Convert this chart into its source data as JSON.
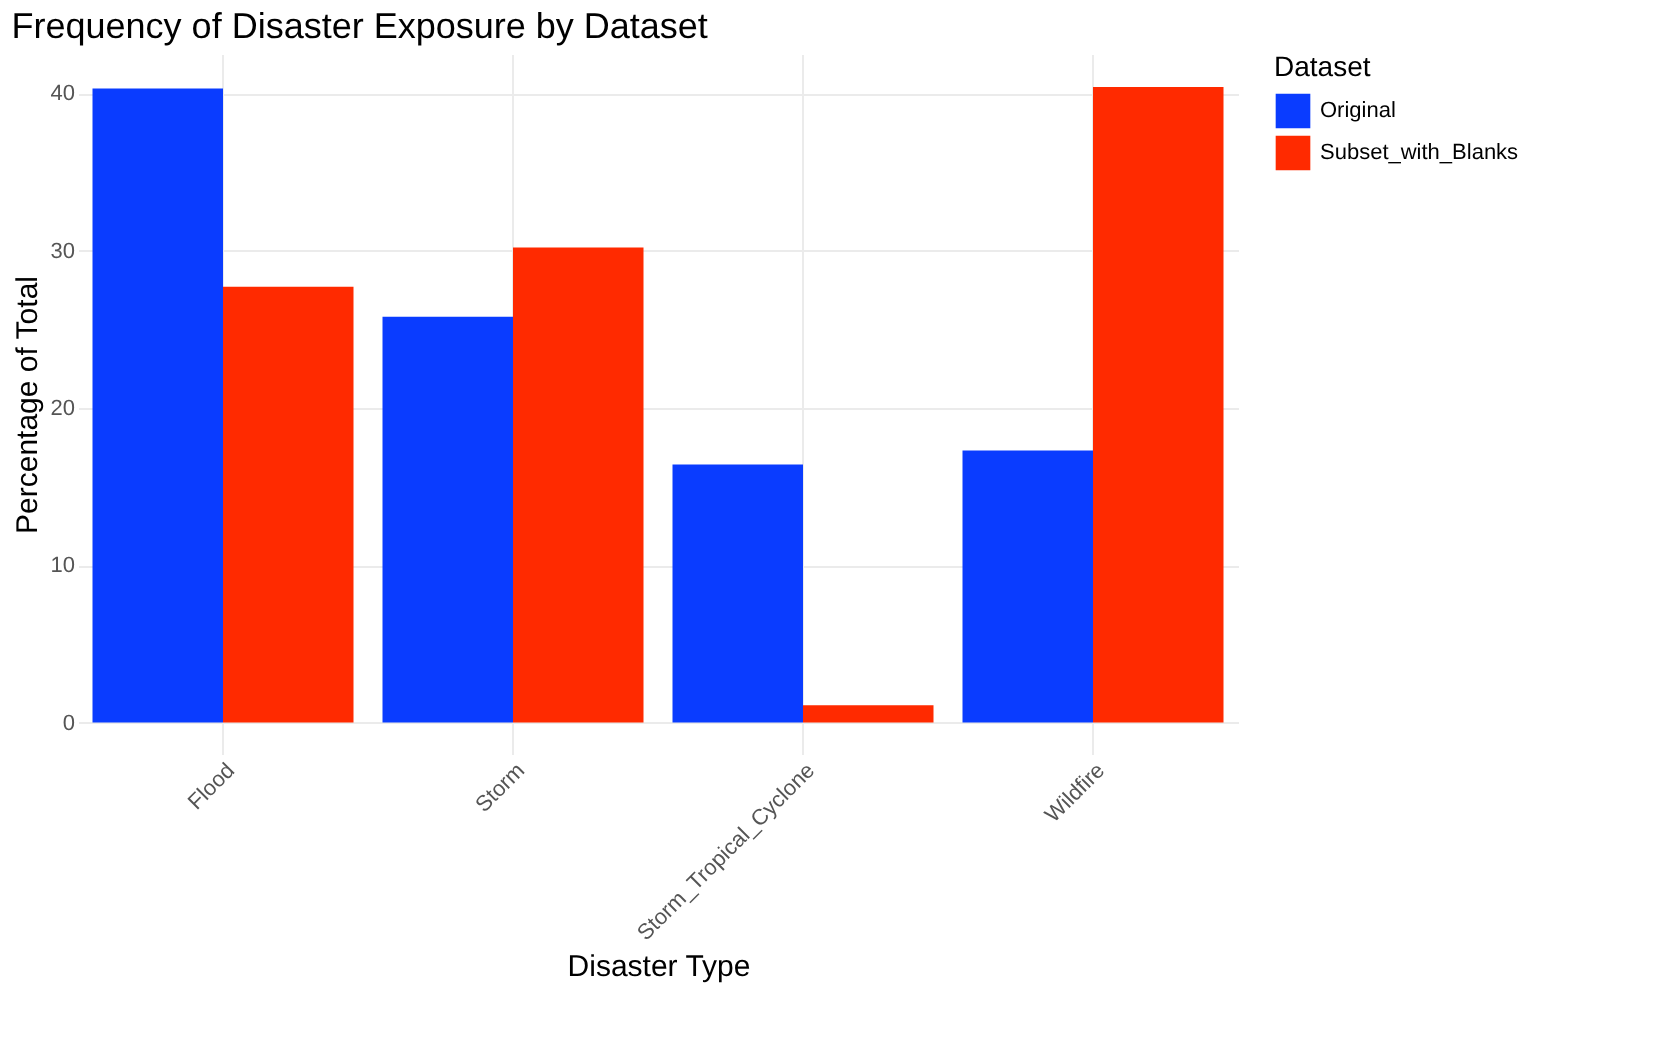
{
  "chart_data": {
    "type": "bar",
    "title": "Frequency of Disaster Exposure by Dataset",
    "xlabel": "Disaster Type",
    "ylabel": "Percentage of Total",
    "legend_title": "Dataset",
    "categories": [
      "Flood",
      "Storm",
      "Storm_Tropical_Cyclone",
      "Wildfire"
    ],
    "series": [
      {
        "name": "Original",
        "color": "#0a3cff",
        "values": [
          40.3,
          25.8,
          16.4,
          17.3
        ]
      },
      {
        "name": "Subset_with_Blanks",
        "color": "#ff2a00",
        "values": [
          27.7,
          30.2,
          1.1,
          40.4
        ]
      }
    ],
    "ylim": [
      -2,
      42.5
    ],
    "yticks": [
      0,
      10,
      20,
      30,
      40
    ],
    "grid": true,
    "legend": "right"
  }
}
